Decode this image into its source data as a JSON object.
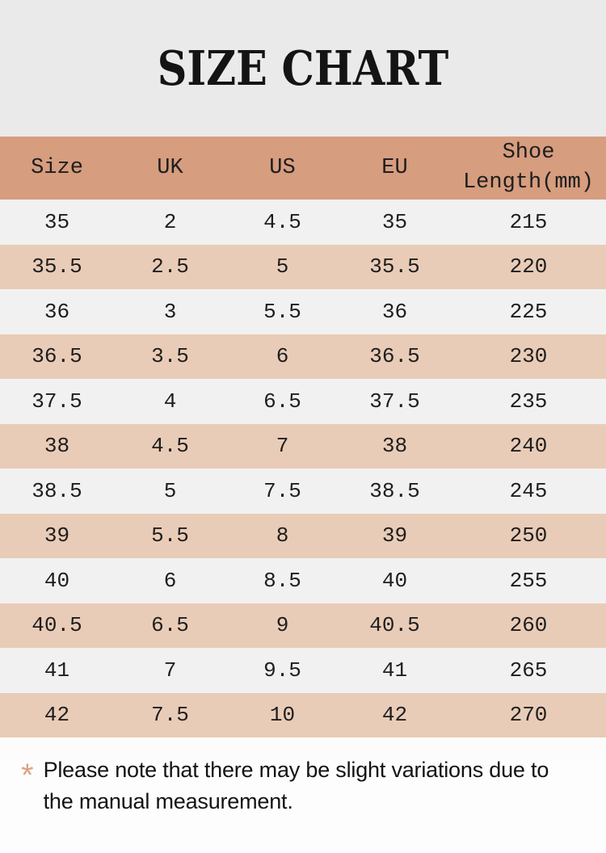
{
  "page": {
    "title": "SIZE CHART",
    "footnote": {
      "marker": "*",
      "text": "Please note that there may be slight variations due to the manual measurement."
    }
  },
  "colors": {
    "header_bg": "#d69d7e",
    "row_tan_bg": "#e9ccb7",
    "row_light_bg": "#f2f1f1",
    "page_bg_top": "#ebeaea",
    "page_bg_bottom": "#fdfdfd",
    "asterisk": "#dca284",
    "text": "#1c1c1c"
  },
  "chart_data": {
    "type": "table",
    "title": "SIZE CHART",
    "columns": [
      "Size",
      "UK",
      "US",
      "EU",
      "Shoe Length(mm)"
    ],
    "rows": [
      [
        "35",
        "2",
        "4.5",
        "35",
        "215"
      ],
      [
        "35.5",
        "2.5",
        "5",
        "35.5",
        "220"
      ],
      [
        "36",
        "3",
        "5.5",
        "36",
        "225"
      ],
      [
        "36.5",
        "3.5",
        "6",
        "36.5",
        "230"
      ],
      [
        "37.5",
        "4",
        "6.5",
        "37.5",
        "235"
      ],
      [
        "38",
        "4.5",
        "7",
        "38",
        "240"
      ],
      [
        "38.5",
        "5",
        "7.5",
        "38.5",
        "245"
      ],
      [
        "39",
        "5.5",
        "8",
        "39",
        "250"
      ],
      [
        "40",
        "6",
        "8.5",
        "40",
        "255"
      ],
      [
        "40.5",
        "6.5",
        "9",
        "40.5",
        "260"
      ],
      [
        "41",
        "7",
        "9.5",
        "41",
        "265"
      ],
      [
        "42",
        "7.5",
        "10",
        "42",
        "270"
      ]
    ]
  }
}
